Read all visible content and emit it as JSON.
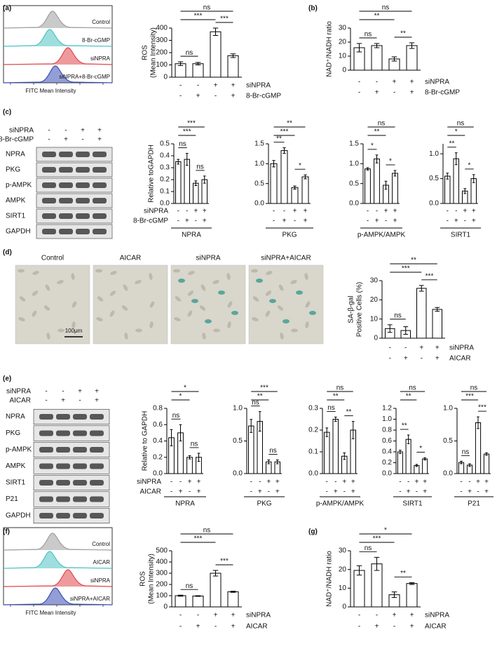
{
  "panel_labels": [
    "(a)",
    "(b)",
    "(c)",
    "(d)",
    "(e)",
    "(f)",
    "(g)"
  ],
  "flow_a": {
    "legend": [
      "Control",
      "8-Br-cGMP",
      "siNPRA",
      "siNPRA+8-Br-cGMP"
    ],
    "colors": [
      "#9e9e9e",
      "#4fc3c3",
      "#e0474c",
      "#3a4fb5"
    ],
    "xlabel": "FITC Mean Intensity"
  },
  "flow_f": {
    "legend": [
      "Control",
      "AICAR",
      "siNPRA",
      "siNPRA+AICAR"
    ],
    "colors": [
      "#9e9e9e",
      "#4fc3c3",
      "#e0474c",
      "#3a4fb5"
    ],
    "xlabel": "FITC Mean Intensity"
  },
  "blot_c": {
    "treatments": [
      {
        "name": "siNPRA",
        "signs": [
          "-",
          "-",
          "+",
          "+"
        ]
      },
      {
        "name": "8-Br-cGMP",
        "signs": [
          "-",
          "+",
          "-",
          "+"
        ]
      }
    ],
    "bands": [
      "NPRA",
      "PKG",
      "p-AMPK",
      "AMPK",
      "SIRT1",
      "GAPDH"
    ]
  },
  "blot_e": {
    "treatments": [
      {
        "name": "siNPRA",
        "signs": [
          "-",
          "-",
          "+",
          "+"
        ]
      },
      {
        "name": "AICAR",
        "signs": [
          "-",
          "+",
          "-",
          "+"
        ]
      }
    ],
    "bands": [
      "NPRA",
      "PKG",
      "p-AMPK",
      "AMPK",
      "SIRT1",
      "P21",
      "GAPDH"
    ]
  },
  "images_d": {
    "labels": [
      "Control",
      "AICAR",
      "siNPRA",
      "siNPRA+AICAR"
    ],
    "scale_bar": "100μm"
  },
  "chart_data": [
    {
      "type": "bar",
      "ylabel": [
        "ROS",
        "(Mean Intensity)"
      ],
      "values": [
        110,
        110,
        370,
        175
      ],
      "errors": [
        15,
        10,
        30,
        15
      ],
      "color": "#ffffff",
      "ylim": [
        0,
        400
      ],
      "yticks": [
        0,
        100,
        200,
        300,
        400
      ],
      "brackets": [
        {
          "text": "ns",
          "between": [
            0,
            3
          ]
        },
        {
          "text": "***",
          "between": [
            0,
            2
          ]
        },
        {
          "text": "ns",
          "between": [
            0,
            1
          ]
        },
        {
          "text": "***",
          "between": [
            2,
            3
          ]
        }
      ],
      "treatments": [
        {
          "name": "siNPRA",
          "signs": [
            "-",
            "-",
            "+",
            "+"
          ]
        },
        {
          "name": "8-Br-cGMP",
          "signs": [
            "-",
            "+",
            "-",
            "+"
          ]
        }
      ]
    },
    {
      "type": "bar",
      "ylabel": [
        "NAD⁺/NADH ratio"
      ],
      "values": [
        16,
        17.5,
        8,
        17.5
      ],
      "errors": [
        3,
        1.5,
        1.5,
        2
      ],
      "color": "#ffffff",
      "ylim": [
        0,
        30
      ],
      "yticks": [
        0,
        10,
        20,
        30
      ],
      "brackets": [
        {
          "text": "ns",
          "between": [
            0,
            3
          ]
        },
        {
          "text": "**",
          "between": [
            0,
            2
          ]
        },
        {
          "text": "ns",
          "between": [
            0,
            1
          ]
        },
        {
          "text": "**",
          "between": [
            2,
            3
          ]
        }
      ],
      "treatments": [
        {
          "name": "siNPRA",
          "signs": [
            "-",
            "-",
            "+",
            "+"
          ]
        },
        {
          "name": "8-Br-cGMP",
          "signs": [
            "-",
            "+",
            "-",
            "+"
          ]
        }
      ]
    },
    {
      "type": "bar",
      "ylabel": [
        "Relative toGAPDH"
      ],
      "xlabel": "NPRA",
      "values": [
        0.35,
        0.37,
        0.17,
        0.2
      ],
      "errors": [
        0.02,
        0.05,
        0.02,
        0.03
      ],
      "color": "#ffffff",
      "ylim": [
        0,
        0.5
      ],
      "yticks": [
        {
          "value": 0,
          "label": "0.0"
        },
        0.1,
        0.2,
        0.3,
        0.4,
        0.5
      ],
      "brackets": [
        {
          "text": "***",
          "between": [
            0,
            3
          ]
        },
        {
          "text": "***",
          "between": [
            0,
            2
          ]
        },
        {
          "text": "ns",
          "between": [
            0,
            1
          ]
        },
        {
          "text": "ns",
          "between": [
            2,
            3
          ]
        }
      ],
      "treatments": [
        {
          "name": "siNPRA",
          "signs": [
            "-",
            "-",
            "+",
            "+"
          ]
        },
        {
          "name": "8-Br-cGMP",
          "signs": [
            "-",
            "+",
            "-",
            "+"
          ]
        }
      ]
    },
    {
      "type": "bar",
      "xlabel": "PKG",
      "values": [
        1.0,
        1.33,
        0.4,
        0.67
      ],
      "errors": [
        0.08,
        0.07,
        0.04,
        0.05
      ],
      "color": "#ffffff",
      "ylim": [
        0,
        1.5
      ],
      "yticks": [
        {
          "value": 0,
          "label": "0.0"
        },
        0.5,
        {
          "value": 1,
          "label": "1.0"
        },
        1.5
      ],
      "brackets": [
        {
          "text": "**",
          "between": [
            0,
            3
          ]
        },
        {
          "text": "***",
          "between": [
            0,
            2
          ]
        },
        {
          "text": "**",
          "between": [
            0,
            1
          ]
        },
        {
          "text": "*",
          "between": [
            2,
            3
          ]
        }
      ],
      "treatments": [
        {
          "signs": [
            "-",
            "-",
            "+",
            "+"
          ]
        },
        {
          "signs": [
            "-",
            "+",
            "-",
            "+"
          ]
        }
      ]
    },
    {
      "type": "bar",
      "xlabel": "p-AMPK/AMPK",
      "values": [
        0.87,
        1.12,
        0.46,
        0.76
      ],
      "errors": [
        0.03,
        0.1,
        0.1,
        0.07
      ],
      "color": "#ffffff",
      "ylim": [
        0,
        1.5
      ],
      "yticks": [
        {
          "value": 0,
          "label": "0.0"
        },
        0.5,
        {
          "value": 1,
          "label": "1.0"
        },
        1.5
      ],
      "brackets": [
        {
          "text": "ns",
          "between": [
            0,
            3
          ]
        },
        {
          "text": "**",
          "between": [
            0,
            2
          ]
        },
        {
          "text": "*",
          "between": [
            0,
            1
          ]
        },
        {
          "text": "*",
          "between": [
            2,
            3
          ]
        }
      ],
      "treatments": [
        {
          "signs": [
            "-",
            "-",
            "+",
            "+"
          ]
        },
        {
          "signs": [
            "-",
            "+",
            "-",
            "+"
          ]
        }
      ]
    },
    {
      "type": "bar",
      "xlabel": "SIRT1",
      "values": [
        0.55,
        0.9,
        0.25,
        0.5
      ],
      "errors": [
        0.06,
        0.12,
        0.05,
        0.08
      ],
      "color": "#ffffff",
      "ylim": [
        0,
        1.2
      ],
      "yticks": [
        {
          "value": 0,
          "label": "0.0"
        },
        0.5,
        {
          "value": 1,
          "label": "1.0"
        }
      ],
      "brackets": [
        {
          "text": "ns",
          "between": [
            0,
            3
          ]
        },
        {
          "text": "*",
          "between": [
            0,
            2
          ]
        },
        {
          "text": "**",
          "between": [
            0,
            1
          ]
        },
        {
          "text": "*",
          "between": [
            2,
            3
          ]
        }
      ],
      "treatments": [
        {
          "signs": [
            "-",
            "-",
            "+",
            "+"
          ]
        },
        {
          "signs": [
            "-",
            "+",
            "-",
            "+"
          ]
        }
      ]
    },
    {
      "type": "bar",
      "ylabel": [
        "SA-β-gal",
        "Positive Cells (%)"
      ],
      "values": [
        5,
        4,
        26,
        15
      ],
      "errors": [
        2,
        2,
        1.5,
        1
      ],
      "color": "#ffffff",
      "ylim": [
        0,
        30
      ],
      "yticks": [
        0,
        10,
        20,
        30
      ],
      "brackets": [
        {
          "text": "**",
          "between": [
            0,
            3
          ]
        },
        {
          "text": "***",
          "between": [
            0,
            2
          ]
        },
        {
          "text": "ns",
          "between": [
            0,
            1
          ]
        },
        {
          "text": "***",
          "between": [
            2,
            3
          ]
        }
      ],
      "treatments": [
        {
          "name": "siNPRA",
          "signs": [
            "-",
            "-",
            "+",
            "+"
          ]
        },
        {
          "name": "AICAR",
          "signs": [
            "-",
            "+",
            "-",
            "+"
          ]
        }
      ]
    },
    {
      "type": "bar",
      "ylabel": [
        "Relative to GAPDH"
      ],
      "xlabel": "NPRA",
      "values": [
        0.44,
        0.5,
        0.2,
        0.2
      ],
      "errors": [
        0.1,
        0.1,
        0.02,
        0.05
      ],
      "color": "#ffffff",
      "ylim": [
        0,
        0.8
      ],
      "yticks": [
        {
          "value": 0,
          "label": "0.0"
        },
        0.2,
        0.4,
        0.6,
        0.8
      ],
      "brackets": [
        {
          "text": "*",
          "between": [
            0,
            3
          ]
        },
        {
          "text": "*",
          "between": [
            0,
            2
          ]
        },
        {
          "text": "ns",
          "between": [
            0,
            1
          ]
        },
        {
          "text": "ns",
          "between": [
            2,
            3
          ]
        }
      ],
      "treatments": [
        {
          "name": "siNPRA",
          "signs": [
            "-",
            "-",
            "+",
            "+"
          ]
        },
        {
          "name": "AICAR",
          "signs": [
            "-",
            "+",
            "-",
            "+"
          ]
        }
      ]
    },
    {
      "type": "bar",
      "xlabel": "PKG",
      "values": [
        0.73,
        0.8,
        0.18,
        0.18
      ],
      "errors": [
        0.1,
        0.15,
        0.03,
        0.03
      ],
      "color": "#ffffff",
      "ylim": [
        0,
        1
      ],
      "yticks": [
        {
          "value": 0,
          "label": "0.0"
        },
        0.5,
        {
          "value": 1,
          "label": "1.0"
        }
      ],
      "brackets": [
        {
          "text": "***",
          "between": [
            0,
            3
          ]
        },
        {
          "text": "**",
          "between": [
            0,
            2
          ]
        },
        {
          "text": "ns",
          "between": [
            0,
            1
          ]
        },
        {
          "text": "ns",
          "between": [
            2,
            3
          ]
        }
      ],
      "treatments": [
        {
          "signs": [
            "-",
            "-",
            "+",
            "+"
          ]
        },
        {
          "signs": [
            "-",
            "+",
            "-",
            "+"
          ]
        }
      ]
    },
    {
      "type": "bar",
      "xlabel": "p-AMPK/AMPK",
      "values": [
        0.19,
        0.25,
        0.08,
        0.2
      ],
      "errors": [
        0.02,
        0.01,
        0.015,
        0.04
      ],
      "color": "#ffffff",
      "ylim": [
        0,
        0.3
      ],
      "yticks": [
        {
          "value": 0,
          "label": "0.0"
        },
        0.1,
        0.2,
        0.3
      ],
      "brackets": [
        {
          "text": "ns",
          "between": [
            0,
            3
          ]
        },
        {
          "text": "**",
          "between": [
            0,
            2
          ]
        },
        {
          "text": "ns",
          "between": [
            0,
            1
          ]
        },
        {
          "text": "**",
          "between": [
            2,
            3
          ]
        }
      ],
      "treatments": [
        {
          "signs": [
            "-",
            "-",
            "+",
            "+"
          ]
        },
        {
          "signs": [
            "-",
            "+",
            "-",
            "+"
          ]
        }
      ]
    },
    {
      "type": "bar",
      "xlabel": "SIRT1",
      "values": [
        0.4,
        0.63,
        0.15,
        0.27
      ],
      "errors": [
        0.03,
        0.08,
        0.02,
        0.02
      ],
      "color": "#ffffff",
      "ylim": [
        0,
        1.2
      ],
      "yticks": [
        {
          "value": 0,
          "label": "0.0"
        },
        0.2,
        0.4,
        0.6,
        0.8,
        {
          "value": 1,
          "label": "1.0"
        },
        1.2
      ],
      "brackets": [
        {
          "text": "ns",
          "between": [
            0,
            3
          ]
        },
        {
          "text": "**",
          "between": [
            0,
            2
          ]
        },
        {
          "text": "**",
          "between": [
            0,
            1
          ]
        },
        {
          "text": "*",
          "between": [
            2,
            3
          ]
        }
      ],
      "treatments": [
        {
          "signs": [
            "-",
            "-",
            "+",
            "+"
          ]
        },
        {
          "signs": [
            "-",
            "+",
            "-",
            "+"
          ]
        }
      ]
    },
    {
      "type": "bar",
      "xlabel": "P21",
      "values": [
        0.17,
        0.13,
        0.78,
        0.3
      ],
      "errors": [
        0.02,
        0.02,
        0.09,
        0.02
      ],
      "color": "#ffffff",
      "ylim": [
        0,
        1
      ],
      "yticks": [
        {
          "value": 0,
          "label": "0.0"
        },
        0.5,
        {
          "value": 1,
          "label": "1.0"
        }
      ],
      "brackets": [
        {
          "text": "ns",
          "between": [
            0,
            3
          ]
        },
        {
          "text": "***",
          "between": [
            0,
            2
          ]
        },
        {
          "text": "ns",
          "between": [
            0,
            1
          ]
        },
        {
          "text": "***",
          "between": [
            2,
            3
          ]
        }
      ],
      "treatments": [
        {
          "signs": [
            "-",
            "-",
            "+",
            "+"
          ]
        },
        {
          "signs": [
            "-",
            "+",
            "-",
            "+"
          ]
        }
      ]
    },
    {
      "type": "bar",
      "ylabel": [
        "ROS",
        "(Mean Intensity)"
      ],
      "values": [
        100,
        97,
        300,
        135
      ],
      "errors": [
        5,
        3,
        25,
        5
      ],
      "color": "#ffffff",
      "ylim": [
        0,
        500
      ],
      "yticks": [
        0,
        100,
        200,
        300,
        400,
        500
      ],
      "brackets": [
        {
          "text": "ns",
          "between": [
            0,
            3
          ]
        },
        {
          "text": "***",
          "between": [
            0,
            2
          ]
        },
        {
          "text": "ns",
          "between": [
            0,
            1
          ]
        },
        {
          "text": "***",
          "between": [
            2,
            3
          ]
        }
      ],
      "treatments": [
        {
          "name": "siNPRA",
          "signs": [
            "-",
            "-",
            "+",
            "+"
          ]
        },
        {
          "name": "AICAR",
          "signs": [
            "-",
            "+",
            "-",
            "+"
          ]
        }
      ]
    },
    {
      "type": "bar",
      "ylabel": [
        "NAD⁺/NADH ratio"
      ],
      "values": [
        19.5,
        23,
        6.5,
        12.5
      ],
      "errors": [
        2.5,
        3.5,
        1.5,
        0.5
      ],
      "color": "#ffffff",
      "ylim": [
        0,
        30
      ],
      "yticks": [
        0,
        10,
        20,
        30
      ],
      "brackets": [
        {
          "text": "*",
          "between": [
            0,
            3
          ]
        },
        {
          "text": "***",
          "between": [
            0,
            2
          ]
        },
        {
          "text": "ns",
          "between": [
            0,
            1
          ]
        },
        {
          "text": "**",
          "between": [
            2,
            3
          ]
        }
      ],
      "treatments": [
        {
          "name": "siNPRA",
          "signs": [
            "-",
            "-",
            "+",
            "+"
          ]
        },
        {
          "name": "AICAR",
          "signs": [
            "-",
            "+",
            "-",
            "+"
          ]
        }
      ]
    }
  ]
}
